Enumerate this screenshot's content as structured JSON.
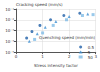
{
  "chart_data": {
    "type": "scatter",
    "x_label": "Stress intensity factor",
    "y_label": "Cracking speed (mm/s)",
    "annotations": [
      {
        "text": "Quenching speed (mm/min)"
      }
    ],
    "series": [
      {
        "name": "0.5",
        "color": "#1f5fa8",
        "marker": "circle",
        "values": [
          [
            0.4,
            0.0002
          ],
          [
            0.6,
            0.0008
          ],
          [
            0.9,
            0.003
          ],
          [
            1.3,
            0.01
          ],
          [
            1.8,
            0.025
          ],
          [
            2.4,
            0.04
          ]
        ]
      },
      {
        "name": "5",
        "color": "#3d8fd1",
        "marker": "triangle",
        "values": [
          [
            0.5,
            0.0001
          ],
          [
            0.8,
            0.0005
          ],
          [
            1.1,
            0.002
          ],
          [
            1.5,
            0.007
          ],
          [
            2.0,
            0.02
          ],
          [
            2.7,
            0.035
          ]
        ]
      },
      {
        "name": "50",
        "color": "#7fbce6",
        "marker": "rect",
        "values": [
          [
            0.7,
            0.00015
          ],
          [
            1.0,
            0.0006
          ],
          [
            1.4,
            0.003
          ],
          [
            1.9,
            0.01
          ],
          [
            2.5,
            0.025
          ],
          [
            2.9,
            0.03
          ]
        ]
      }
    ],
    "xlim": [
      0,
      3
    ],
    "xticks": [
      0,
      1,
      2,
      3
    ],
    "ylim": [
      1e-05,
      0.1
    ],
    "yticks": [
      {
        "value": 1e-05,
        "label": "10⁻⁵"
      },
      {
        "value": 0.0001,
        "label": "10⁻⁴"
      },
      {
        "value": 0.001,
        "label": "10⁻³"
      },
      {
        "value": 0.01,
        "label": "10⁻²"
      },
      {
        "value": 0.1,
        "label": "10⁻¹"
      }
    ],
    "log": "y",
    "grid": true,
    "legend": "lower right"
  }
}
